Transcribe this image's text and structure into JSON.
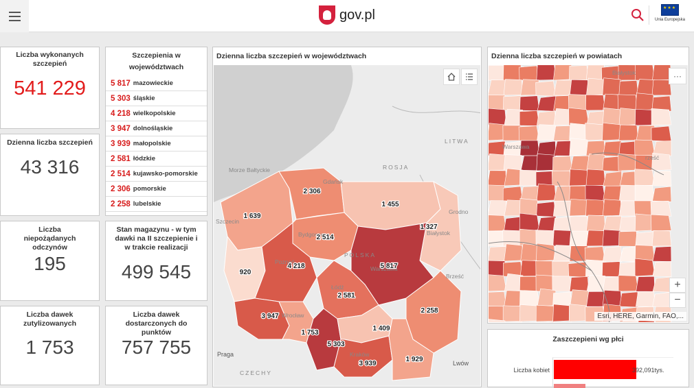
{
  "header": {
    "site": "gov.pl",
    "eu_label": "Unia Europejska"
  },
  "kpis": [
    {
      "title": "Liczba wykonanych szczepień",
      "value": "541 229",
      "color": "#e21b1b"
    },
    {
      "title": "Dzienna liczba szczepień",
      "value": "43 316",
      "color": "#444444"
    },
    {
      "title": "Liczba niepożądanych odczynów",
      "value": "195",
      "color": "#444444"
    },
    {
      "title": "Stan magazynu - w tym dawki na II szczepienie i w trakcie realizacji",
      "value": "499 545",
      "color": "#444444"
    },
    {
      "title": "Liczba dawek zutylizowanych",
      "value": "1 753",
      "color": "#444444"
    },
    {
      "title": "Liczba dawek dostarczonych do punktów",
      "value": "757 755",
      "color": "#444444"
    }
  ],
  "voivodeship_list": {
    "title": "Szczepienia w województwach",
    "rows": [
      {
        "value": "5 817",
        "name": "mazowieckie"
      },
      {
        "value": "5 303",
        "name": "śląskie"
      },
      {
        "value": "4 218",
        "name": "wielkopolskie"
      },
      {
        "value": "3 947",
        "name": "dolnośląskie"
      },
      {
        "value": "3 939",
        "name": "małopolskie"
      },
      {
        "value": "2 581",
        "name": "łódzkie"
      },
      {
        "value": "2 514",
        "name": "kujawsko-pomorskie"
      },
      {
        "value": "2 306",
        "name": "pomorskie"
      },
      {
        "value": "2 258",
        "name": "lubelskie"
      }
    ]
  },
  "map_voiv": {
    "title": "Dzienna liczba szczepień w województwach",
    "place_labels": {
      "sea": "Morze Bałtyckie",
      "litwa": "LITWA",
      "rosja": "ROSJA",
      "czechy": "CZECHY",
      "praga": "Praga",
      "lwow": "Lwów",
      "grodno": "Grodno",
      "brzesc": "Brześć",
      "szczecin": "Szczecin",
      "bialystok": "Białystok",
      "warszawa": "Warszawa",
      "polska": "POLSKA",
      "bydgoszcz": "Bydgoszcz",
      "poznan": "Poznań",
      "lodz": "Łódź",
      "wroclaw": "Wrocław",
      "krakow": "Kraków",
      "gdansk": "Gdańsk"
    },
    "regions": [
      {
        "name": "zachodniopomorskie",
        "value": "1 639",
        "color": "#f3a48c"
      },
      {
        "name": "pomorskie",
        "value": "2 306",
        "color": "#ee8d72"
      },
      {
        "name": "warmińsko-mazurskie",
        "value": "1 455",
        "color": "#f7c3b1"
      },
      {
        "name": "podlaskie",
        "value": "1 327",
        "color": "#f8c9b8"
      },
      {
        "name": "kujawsko-pomorskie",
        "value": "2 514",
        "color": "#ee8d72"
      },
      {
        "name": "lubuskie",
        "value": "920",
        "color": "#fbdccf"
      },
      {
        "name": "wielkopolskie",
        "value": "4 218",
        "color": "#d85a4a"
      },
      {
        "name": "mazowieckie",
        "value": "5 817",
        "color": "#b83a3e"
      },
      {
        "name": "łódzkie",
        "value": "2 581",
        "color": "#e4715d"
      },
      {
        "name": "lubelskie",
        "value": "2 258",
        "color": "#ee8d72"
      },
      {
        "name": "dolnośląskie",
        "value": "3 947",
        "color": "#d85a4a"
      },
      {
        "name": "opolskie",
        "value": "1 753",
        "color": "#f3a48c"
      },
      {
        "name": "śląskie",
        "value": "5 303",
        "color": "#b83a3e"
      },
      {
        "name": "świętokrzyskie",
        "value": "1 409",
        "color": "#f7c3b1"
      },
      {
        "name": "małopolskie",
        "value": "3 939",
        "color": "#d85a4a"
      },
      {
        "name": "podkarpackie",
        "value": "1 929",
        "color": "#f3a48c"
      }
    ]
  },
  "map_powiat": {
    "title": "Dzienna liczba szczepień w powiatach",
    "attribution": "Esri, HERE, Garmin, FAO,...",
    "zoom_in": "+",
    "zoom_out": "−",
    "more": "···",
    "place_labels": {
      "brzesc": "rześć",
      "bialystok": "Białystok",
      "warszawa": "Warszawa"
    }
  },
  "gender": {
    "title": "Zaszczepieni wg płci",
    "bars": [
      {
        "label": "Liczba kobiet",
        "value": "392,091tys.",
        "fraction": 1.0,
        "color": "#ff0000"
      },
      {
        "label": "",
        "value": "",
        "fraction": 0.38,
        "color": "#f08080"
      }
    ]
  }
}
